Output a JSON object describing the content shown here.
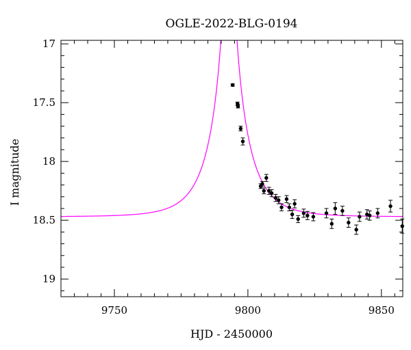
{
  "chart_data": {
    "type": "scatter",
    "title": "OGLE-2022-BLG-0194",
    "xlabel": "HJD - 2450000",
    "ylabel": "I magnitude",
    "xlim": [
      9730,
      9858
    ],
    "ylim": [
      19.15,
      16.97
    ],
    "y_inverted": true,
    "grid": false,
    "x_ticks": [
      9750,
      9800,
      9850
    ],
    "y_ticks": [
      17,
      17.5,
      18,
      18.5,
      19
    ],
    "x_tick_labels": [
      "9750",
      "9800",
      "9850"
    ],
    "y_tick_labels": [
      "17",
      "17.5",
      "18",
      "18.5",
      "19"
    ],
    "colors": {
      "model": "#ff00ff",
      "data": "#000000"
    },
    "series": [
      {
        "type": "scatter",
        "points": [
          {
            "x": 9794.3,
            "y": 17.35,
            "err": 0.01
          },
          {
            "x": 9796.1,
            "y": 17.51,
            "err": 0.015
          },
          {
            "x": 9796.3,
            "y": 17.53,
            "err": 0.015
          },
          {
            "x": 9797.3,
            "y": 17.72,
            "err": 0.02
          },
          {
            "x": 9798.1,
            "y": 17.83,
            "err": 0.03
          },
          {
            "x": 9804.8,
            "y": 18.21,
            "err": 0.02
          },
          {
            "x": 9805.4,
            "y": 18.19,
            "err": 0.02
          },
          {
            "x": 9806.0,
            "y": 18.25,
            "err": 0.025
          },
          {
            "x": 9806.9,
            "y": 18.14,
            "err": 0.03
          },
          {
            "x": 9807.9,
            "y": 18.25,
            "err": 0.03
          },
          {
            "x": 9808.9,
            "y": 18.27,
            "err": 0.03
          },
          {
            "x": 9810.4,
            "y": 18.31,
            "err": 0.03
          },
          {
            "x": 9811.5,
            "y": 18.33,
            "err": 0.03
          },
          {
            "x": 9812.6,
            "y": 18.39,
            "err": 0.03
          },
          {
            "x": 9814.5,
            "y": 18.32,
            "err": 0.03
          },
          {
            "x": 9815.5,
            "y": 18.39,
            "err": 0.03
          },
          {
            "x": 9816.6,
            "y": 18.45,
            "err": 0.035
          },
          {
            "x": 9817.5,
            "y": 18.36,
            "err": 0.035
          },
          {
            "x": 9818.8,
            "y": 18.49,
            "err": 0.03
          },
          {
            "x": 9820.9,
            "y": 18.44,
            "err": 0.035
          },
          {
            "x": 9822.3,
            "y": 18.46,
            "err": 0.035
          },
          {
            "x": 9824.5,
            "y": 18.47,
            "err": 0.035
          },
          {
            "x": 9829.4,
            "y": 18.44,
            "err": 0.04
          },
          {
            "x": 9831.4,
            "y": 18.53,
            "err": 0.04
          },
          {
            "x": 9832.7,
            "y": 18.4,
            "err": 0.05
          },
          {
            "x": 9835.4,
            "y": 18.42,
            "err": 0.04
          },
          {
            "x": 9837.7,
            "y": 18.52,
            "err": 0.04
          },
          {
            "x": 9840.6,
            "y": 18.58,
            "err": 0.04
          },
          {
            "x": 9841.8,
            "y": 18.47,
            "err": 0.04
          },
          {
            "x": 9844.6,
            "y": 18.45,
            "err": 0.04
          },
          {
            "x": 9845.6,
            "y": 18.46,
            "err": 0.04
          },
          {
            "x": 9848.6,
            "y": 18.44,
            "err": 0.04
          },
          {
            "x": 9853.4,
            "y": 18.38,
            "err": 0.05
          },
          {
            "x": 9857.8,
            "y": 18.55,
            "err": 0.06
          }
        ]
      },
      {
        "type": "line",
        "model": {
          "t0": 9792.9,
          "u0": 0.048,
          "tE": 12.0,
          "baseline_mag": 18.47
        }
      }
    ]
  }
}
